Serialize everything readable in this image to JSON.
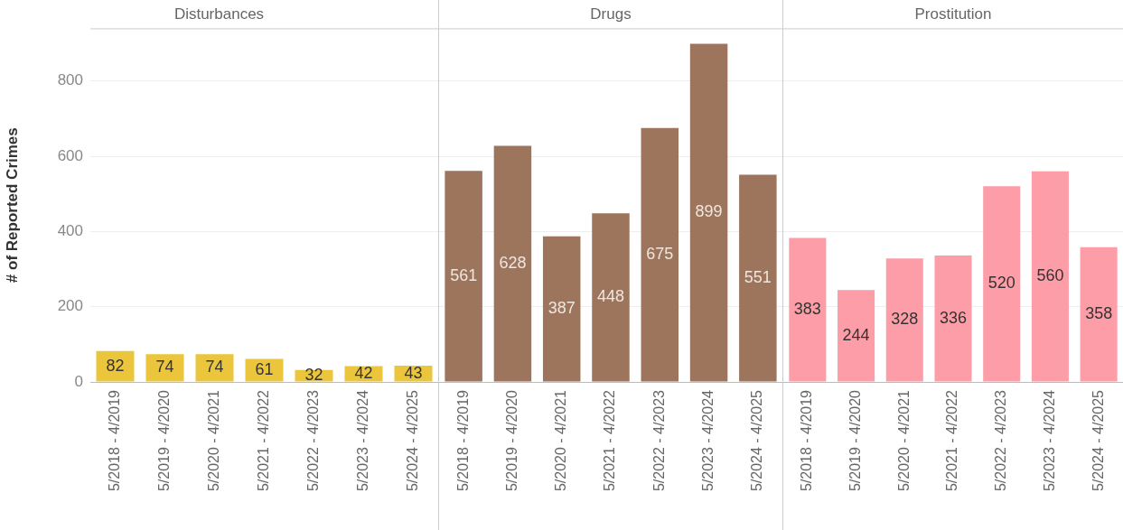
{
  "chart_data": [
    {
      "type": "bar",
      "title": "Disturbances",
      "ylabel": "# of Reported Crimes",
      "categories": [
        "5/2018 - 4/2019",
        "5/2019 - 4/2020",
        "5/2020 - 4/2021",
        "5/2021 - 4/2022",
        "5/2022 - 4/2023",
        "5/2023 - 4/2024",
        "5/2024 - 4/2025"
      ],
      "values": [
        82,
        74,
        74,
        61,
        32,
        42,
        43
      ],
      "color": "#ebc63c",
      "ylim": [
        0,
        940
      ],
      "yticks": [
        0,
        200,
        400,
        600,
        800
      ],
      "grid": "y",
      "data_labels": true
    },
    {
      "type": "bar",
      "title": "Drugs",
      "categories": [
        "5/2018 - 4/2019",
        "5/2019 - 4/2020",
        "5/2020 - 4/2021",
        "5/2021 - 4/2022",
        "5/2022 - 4/2023",
        "5/2023 - 4/2024",
        "5/2024 - 4/2025"
      ],
      "values": [
        561,
        628,
        387,
        448,
        675,
        899,
        551
      ],
      "color": "#9c755c",
      "ylim": [
        0,
        940
      ],
      "yticks": [
        0,
        200,
        400,
        600,
        800
      ],
      "grid": "y",
      "data_labels": true,
      "tick_labels": "x"
    },
    {
      "type": "bar",
      "title": "Prostitution",
      "categories": [
        "5/2018 - 4/2019",
        "5/2019 - 4/2020",
        "5/2020 - 4/2021",
        "5/2021 - 4/2022",
        "5/2022 - 4/2023",
        "5/2023 - 4/2024",
        "5/2024 - 4/2025"
      ],
      "values": [
        383,
        244,
        328,
        336,
        520,
        560,
        358
      ],
      "color": "#fd9da7",
      "ylim": [
        0,
        940
      ],
      "yticks": [
        0,
        200,
        400,
        600,
        800
      ],
      "grid": "y",
      "data_labels": true,
      "tick_labels": "x"
    }
  ]
}
